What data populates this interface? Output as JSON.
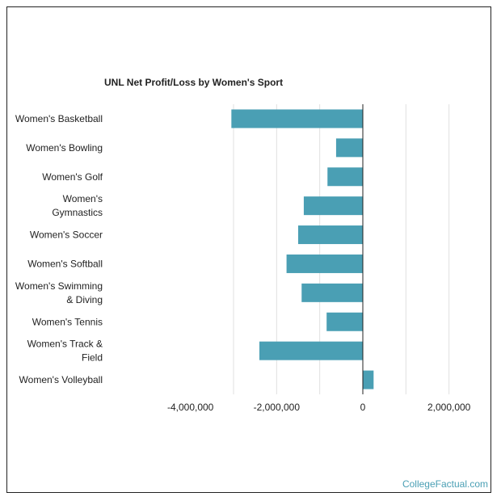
{
  "chart_data": {
    "type": "bar",
    "orientation": "horizontal",
    "title": "UNL Net Profit/Loss by Women's Sport",
    "xlabel": "",
    "ylabel": "",
    "categories": [
      "Women's Basketball",
      "Women's Bowling",
      "Women's Golf",
      "Women's Gymnastics",
      "Women's Soccer",
      "Women's Softball",
      "Women's Swimming & Diving",
      "Women's Tennis",
      "Women's Track & Field",
      "Women's Volleyball"
    ],
    "category_lines": [
      [
        "Women's Basketball"
      ],
      [
        "Women's Bowling"
      ],
      [
        "Women's Golf"
      ],
      [
        "Women's",
        "Gymnastics"
      ],
      [
        "Women's Soccer"
      ],
      [
        "Women's Softball"
      ],
      [
        "Women's Swimming",
        "& Diving"
      ],
      [
        "Women's Tennis"
      ],
      [
        "Women's Track &",
        "Field"
      ],
      [
        "Women's Volleyball"
      ]
    ],
    "values": [
      -3050000,
      -620000,
      -820000,
      -1370000,
      -1500000,
      -1770000,
      -1420000,
      -840000,
      -2400000,
      250000
    ],
    "xlim": [
      -6000000,
      3000000
    ],
    "xticks": [
      -4000000,
      -2000000,
      0,
      2000000
    ],
    "xtick_labels": [
      "-4,000,000",
      "-2,000,000",
      "0",
      "2,000,000"
    ],
    "grid": true,
    "legend": "none",
    "bar_color": "#4a9fb4"
  },
  "watermark": "CollegeFactual.com"
}
